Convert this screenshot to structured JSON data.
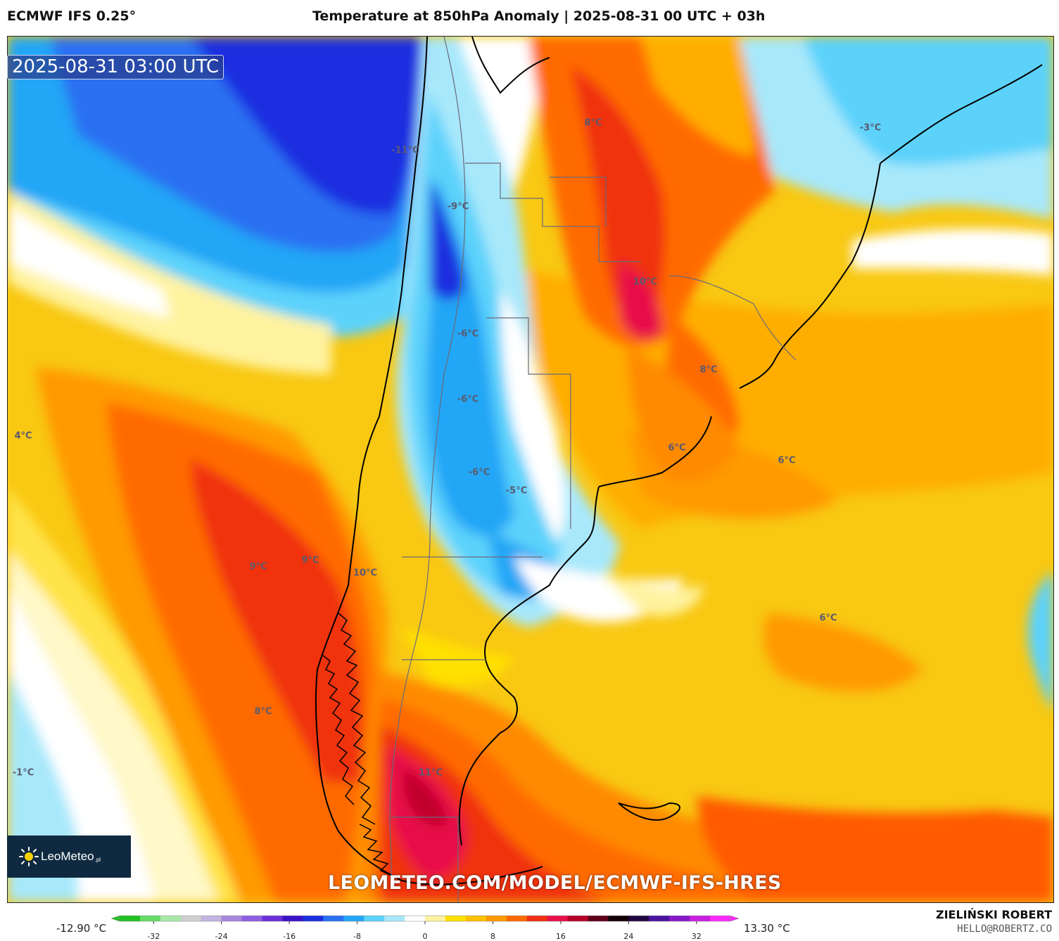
{
  "header": {
    "model": "ECMWF IFS 0.25°",
    "title": "Temperature at 850hPa Anomaly | 2025-08-31 00 UTC + 03h"
  },
  "map": {
    "timestamp": "2025-08-31 03:00 UTC",
    "labels": [
      "-11°C",
      "-9°C",
      "-6°C",
      "-6°C",
      "-6°C",
      "-5°C",
      "8°C",
      "10°C",
      "8°C",
      "6°C",
      "6°C",
      "4°C",
      "9°C",
      "9°C",
      "10°C",
      "8°C",
      "-1°C",
      "6°C",
      "11°C",
      "-3°C"
    ],
    "watermark": "LEOMETEO.COM/MODEL/ECMWF-IFS-HRES"
  },
  "logo": {
    "name": "LeoMeteo",
    "suffix": ".pl"
  },
  "colorbar": {
    "min_label": "-12.90 °C",
    "max_label": "13.30 °C",
    "ticks": [
      "-32",
      "-24",
      "-16",
      "-8",
      "0",
      "8",
      "16",
      "24",
      "32"
    ],
    "tick_values": [
      -32,
      -24,
      -16,
      -8,
      0,
      8,
      16,
      24,
      32
    ],
    "range": [
      -36,
      36
    ],
    "colors": [
      "#22c122",
      "#66dd66",
      "#a8e8a8",
      "#cfcfcf",
      "#c4b4e0",
      "#a886dc",
      "#8f5ee0",
      "#6a2fd8",
      "#3a10c8",
      "#1c2ee0",
      "#2a70f2",
      "#22a6f6",
      "#5cd2fb",
      "#a8e8fb",
      "#ffffff",
      "#fff3a0",
      "#ffe000",
      "#ffc000",
      "#ff9a00",
      "#ff6a00",
      "#f03010",
      "#e8104a",
      "#b8002a",
      "#600018",
      "#140008",
      "#200840",
      "#4a14a0",
      "#8818c8",
      "#c820e0",
      "#ff28ff"
    ]
  },
  "credits": {
    "author": "ZIELIŃSKI ROBERT",
    "email": "HELLO@ROBERTZ.CO"
  },
  "colors": {
    "cold": "#1c2ee0",
    "neutral": "#ffffff",
    "warm": "#ff6a00",
    "hot": "#e8104a"
  }
}
